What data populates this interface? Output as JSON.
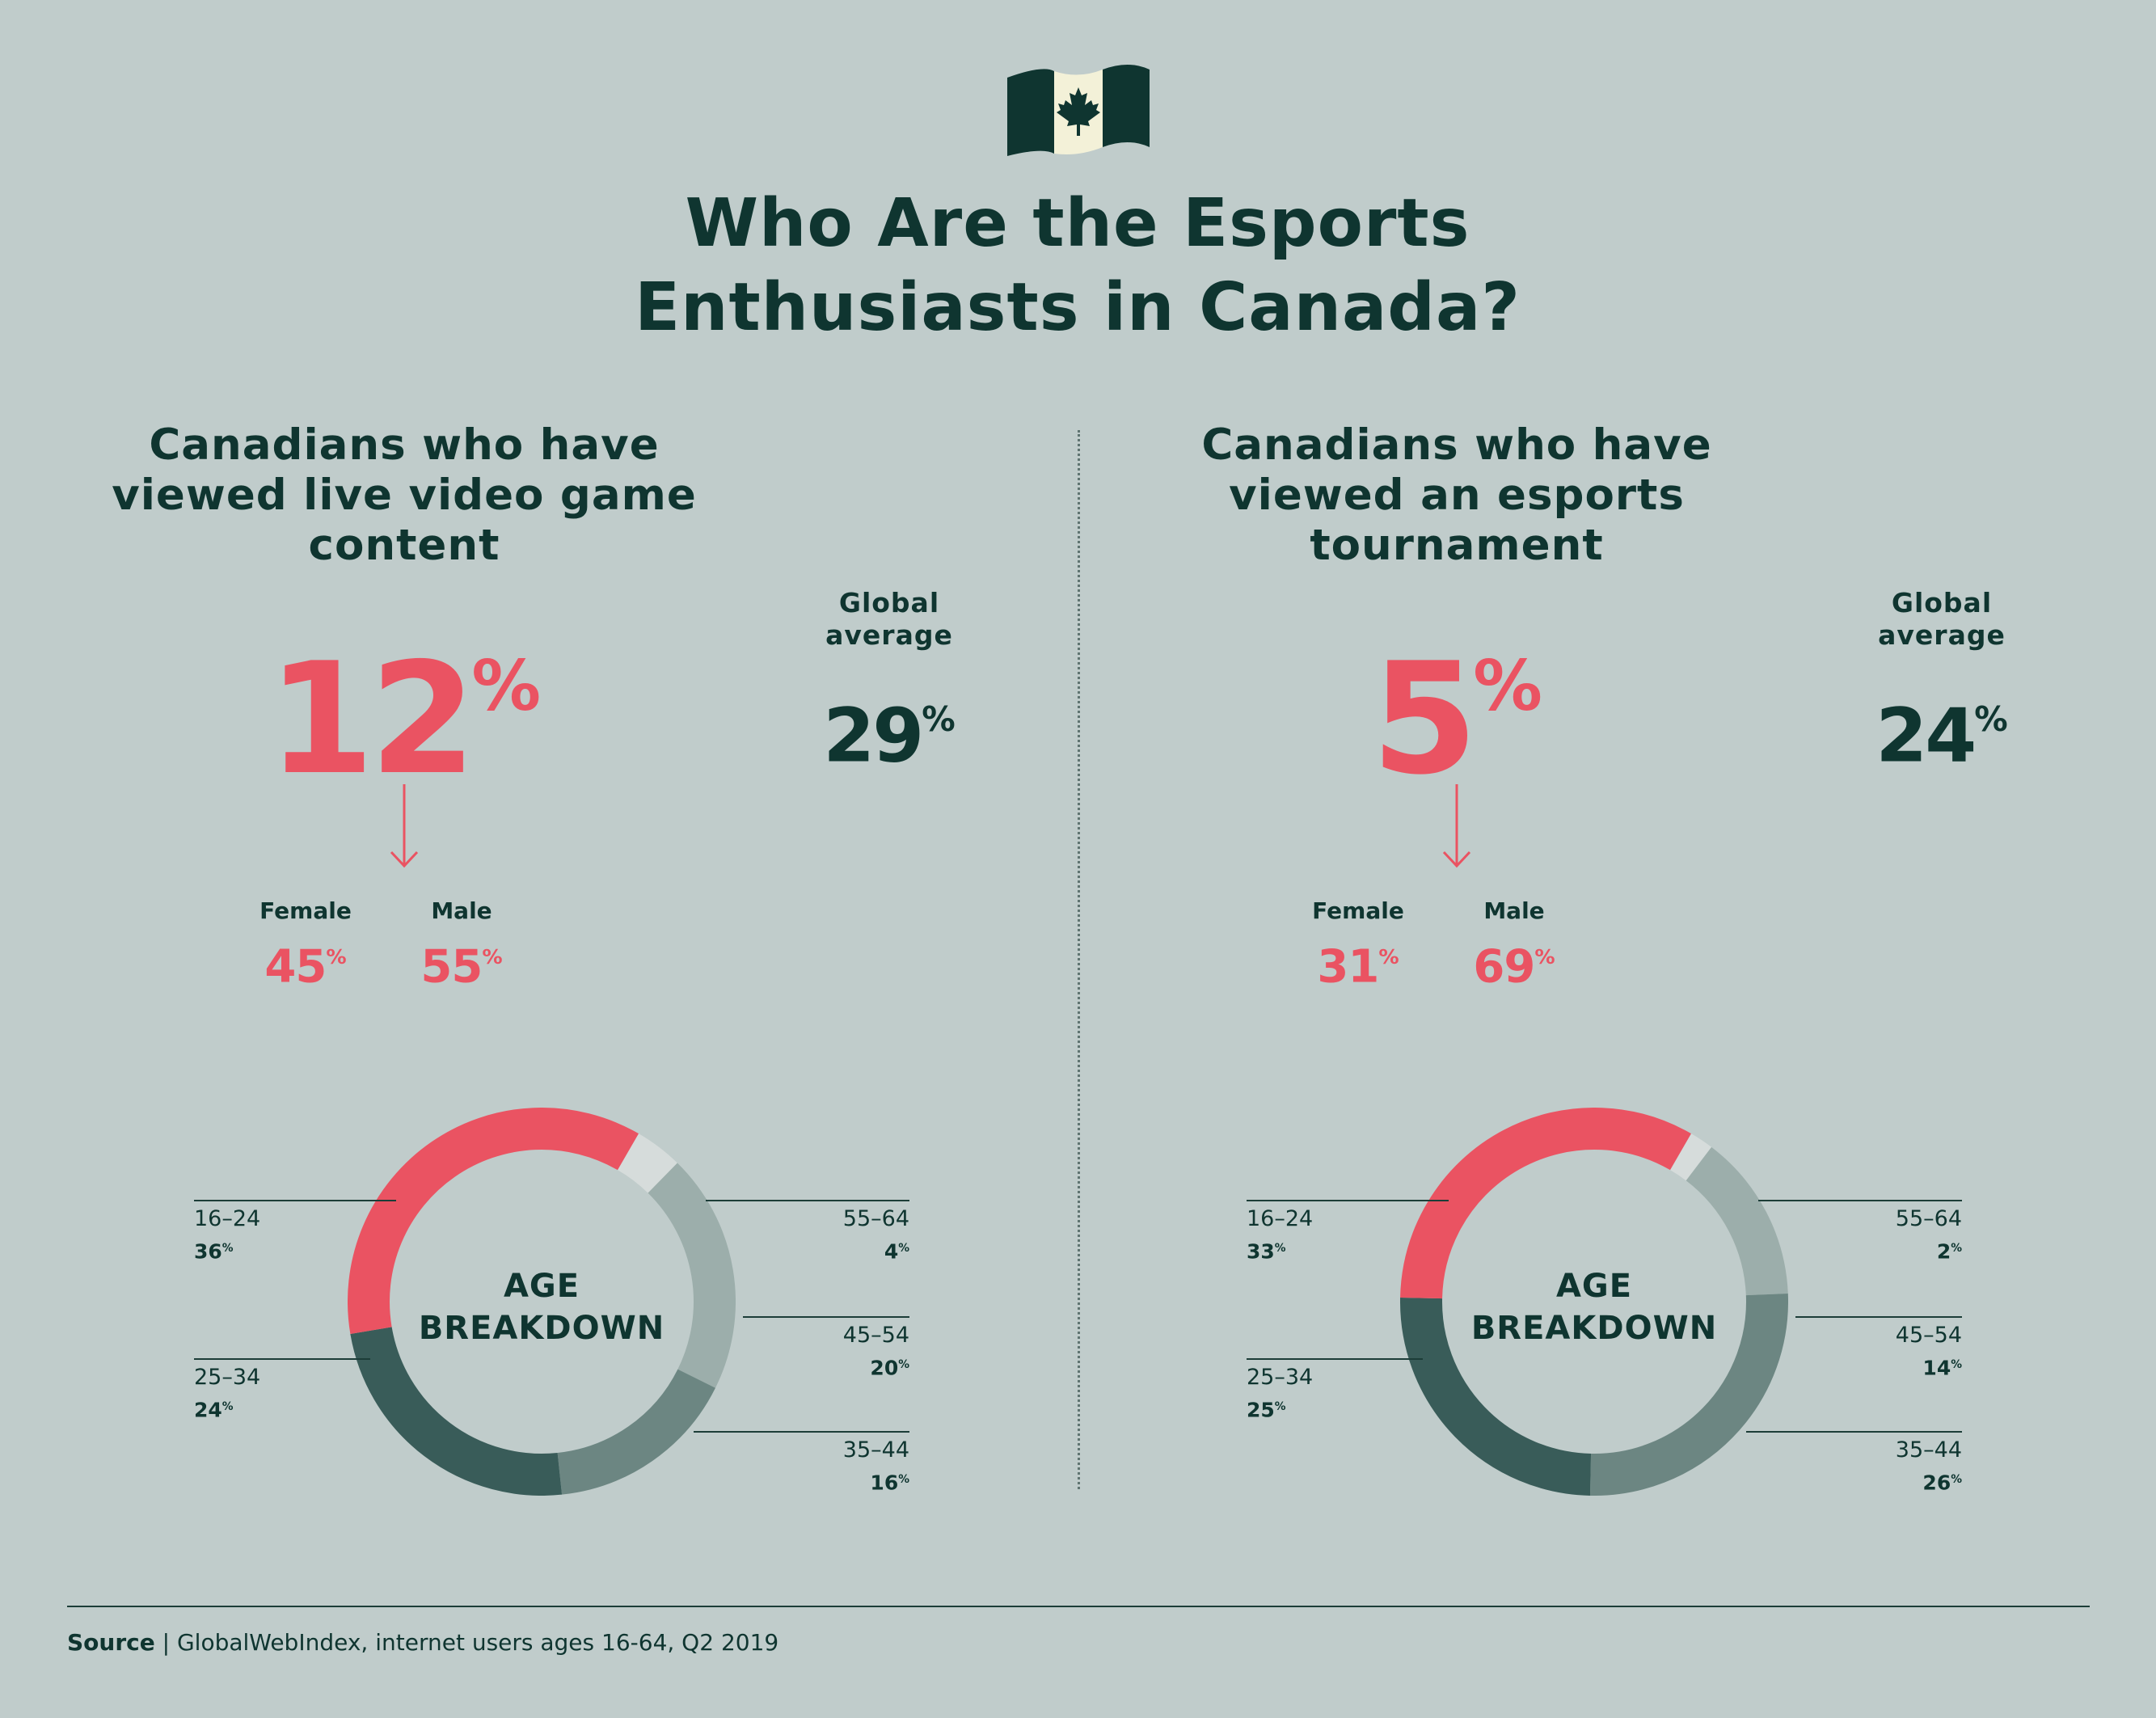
{
  "title_line1": "Who Are the Esports",
  "title_line2": "Enthusiasts in Canada?",
  "colors": {
    "background": "#c0cccb",
    "text_dark": "#0f3530",
    "accent_red": "#ea5362",
    "flag_dark": "#0f3530",
    "flag_light": "#f3f1d8"
  },
  "panels": [
    {
      "heading_lines": [
        "Canadians who have",
        "viewed live video game",
        "content"
      ],
      "value": "12",
      "value_unit": "%",
      "global_label_lines": [
        "Global",
        "average"
      ],
      "global_value": "29",
      "global_unit": "%",
      "female_label": "Female",
      "female_value": "45",
      "male_label": "Male",
      "male_value": "55",
      "age_title_lines": [
        "AGE",
        "BREAKDOWN"
      ]
    },
    {
      "heading_lines": [
        "Canadians who have",
        "viewed an esports",
        "tournament"
      ],
      "value": "5",
      "value_unit": "%",
      "global_label_lines": [
        "Global",
        "average"
      ],
      "global_value": "24",
      "global_unit": "%",
      "female_label": "Female",
      "female_value": "31",
      "male_label": "Male",
      "male_value": "69",
      "age_title_lines": [
        "AGE",
        "BREAKDOWN"
      ]
    }
  ],
  "chart_data": [
    {
      "type": "pie",
      "title": "AGE BREAKDOWN",
      "categories": [
        "16–24",
        "25–34",
        "35–44",
        "45–54",
        "55–64"
      ],
      "values": [
        36,
        24,
        16,
        20,
        4
      ],
      "value_labels": [
        "36",
        "24",
        "16",
        "20",
        "4"
      ],
      "unit": "%",
      "colors": [
        "#ea5362",
        "#395c59",
        "#6c8682",
        "#9caeab",
        "#d6dcdb"
      ]
    },
    {
      "type": "pie",
      "title": "AGE BREAKDOWN",
      "categories": [
        "16–24",
        "25–34",
        "35–44",
        "45–54",
        "55–64"
      ],
      "values": [
        33,
        25,
        26,
        14,
        2
      ],
      "value_labels": [
        "33",
        "25",
        "26",
        "14",
        "2"
      ],
      "unit": "%",
      "colors": [
        "#ea5362",
        "#395c59",
        "#6c8682",
        "#9caeab",
        "#d6dcdb"
      ]
    }
  ],
  "source_label": "Source",
  "source_text": " | GlobalWebIndex, internet users ages 16-64, Q2 2019"
}
